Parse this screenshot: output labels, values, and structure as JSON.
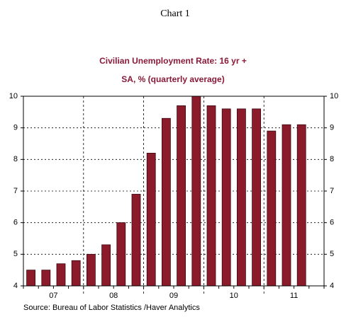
{
  "chart_data": {
    "type": "bar",
    "header": "Chart 1",
    "title": "Civilian Unemployment Rate: 16 yr +",
    "subtitle": "SA, % (quarterly average)",
    "groups": [
      {
        "label": "07",
        "values": [
          4.5,
          4.5,
          4.7,
          4.8
        ]
      },
      {
        "label": "08",
        "values": [
          5.0,
          5.3,
          6.0,
          6.9
        ]
      },
      {
        "label": "09",
        "values": [
          8.2,
          9.3,
          9.7,
          10.0
        ]
      },
      {
        "label": "10",
        "values": [
          9.7,
          9.6,
          9.6,
          9.6
        ]
      },
      {
        "label": "11",
        "values": [
          8.9,
          9.1,
          9.1
        ]
      }
    ],
    "color": "#8b1a2b",
    "ylim": [
      4,
      10
    ],
    "yticks": [
      4,
      5,
      6,
      7,
      8,
      9,
      10
    ],
    "grid": true,
    "source": "Source:  Bureau of Labor Statistics /Haver Analytics"
  }
}
